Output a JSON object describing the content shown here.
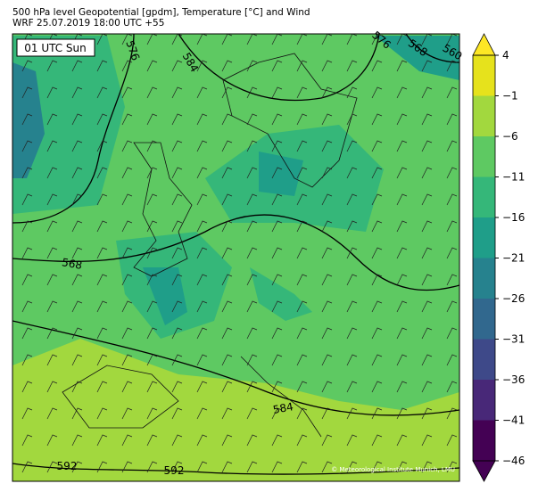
{
  "header": {
    "line1": "500 hPa level Geopotential [gpdm], Temperature [°C] and Wind",
    "line2": "WRF 25.07.2019 18:00 UTC +55"
  },
  "map": {
    "time_label": "01 UTC Sun",
    "copyright": "© Meteorological Institute Munich, LMU",
    "contour_labels": [
      576,
      584,
      576,
      568,
      560,
      568,
      584,
      592,
      592
    ]
  },
  "colorbar": {
    "ticks": [
      4,
      {
        "value": -1,
        "label": "−1"
      },
      {
        "value": -6,
        "label": "−6"
      },
      {
        "value": -11,
        "label": "−11"
      },
      {
        "value": -16,
        "label": "−16"
      },
      {
        "value": -21,
        "label": "−21"
      },
      {
        "value": -26,
        "label": "−26"
      },
      {
        "value": -31,
        "label": "−31"
      },
      {
        "value": -36,
        "label": "−36"
      },
      {
        "value": -41,
        "label": "−41"
      },
      {
        "value": -46,
        "label": "−46"
      }
    ],
    "colors": [
      "#e6e21c",
      "#a2d83e",
      "#5ec962",
      "#35b779",
      "#1f9e89",
      "#26828e",
      "#31688e",
      "#3e4989",
      "#482878",
      "#440154"
    ]
  }
}
